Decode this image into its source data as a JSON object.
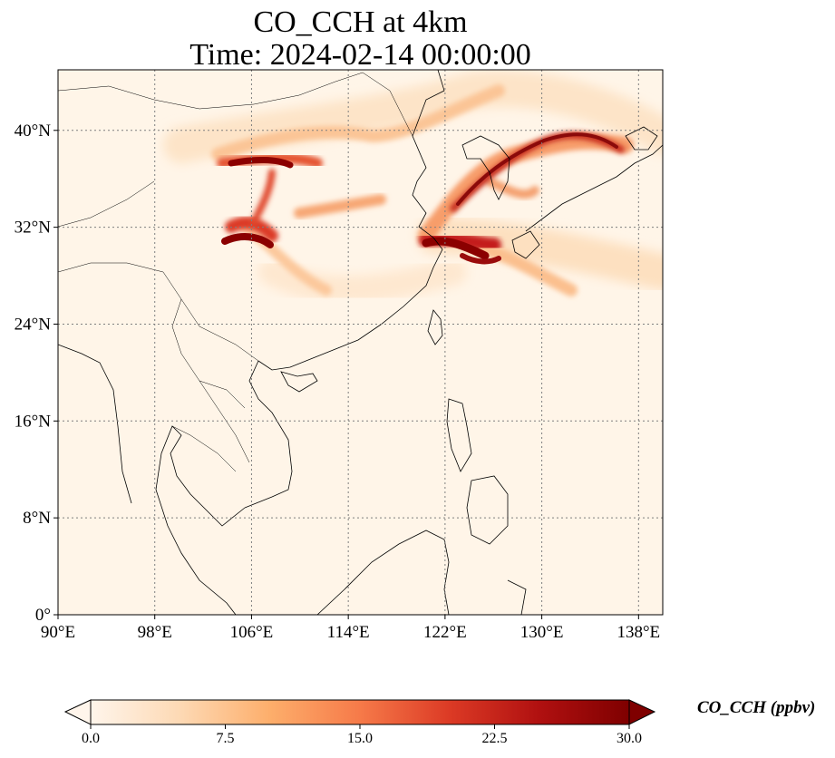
{
  "title_line1": "CO_CCH at 4km",
  "title_line2": "Time: 2024-02-14 00:00:00",
  "map": {
    "lon_range": [
      90,
      140
    ],
    "lat_range": [
      0,
      45
    ],
    "lon_ticks": [
      {
        "value": 90,
        "label": "90°E"
      },
      {
        "value": 98,
        "label": "98°E"
      },
      {
        "value": 106,
        "label": "106°E"
      },
      {
        "value": 114,
        "label": "114°E"
      },
      {
        "value": 122,
        "label": "122°E"
      },
      {
        "value": 130,
        "label": "130°E"
      },
      {
        "value": 138,
        "label": "138°E"
      }
    ],
    "lat_ticks": [
      {
        "value": 0,
        "label": "0°"
      },
      {
        "value": 8,
        "label": "8°N"
      },
      {
        "value": 16,
        "label": "16°N"
      },
      {
        "value": 24,
        "label": "24°N"
      },
      {
        "value": 32,
        "label": "32°N"
      },
      {
        "value": 40,
        "label": "40°N"
      }
    ],
    "gridlines": true,
    "background_color": "#fff5e8"
  },
  "colorbar": {
    "label": "CO_CCH (ppbv)",
    "min": 0,
    "max": 30,
    "extend": "both",
    "ticks": [
      {
        "value": 0,
        "label": "0.0"
      },
      {
        "value": 7.5,
        "label": "7.5"
      },
      {
        "value": 15,
        "label": "15.0"
      },
      {
        "value": 22.5,
        "label": "22.5"
      },
      {
        "value": 30,
        "label": "30.0"
      }
    ],
    "colors": [
      "#fff5eb",
      "#fdd9b4",
      "#fdae6b",
      "#f67a49",
      "#dc3a25",
      "#b01010",
      "#7f0000"
    ]
  }
}
